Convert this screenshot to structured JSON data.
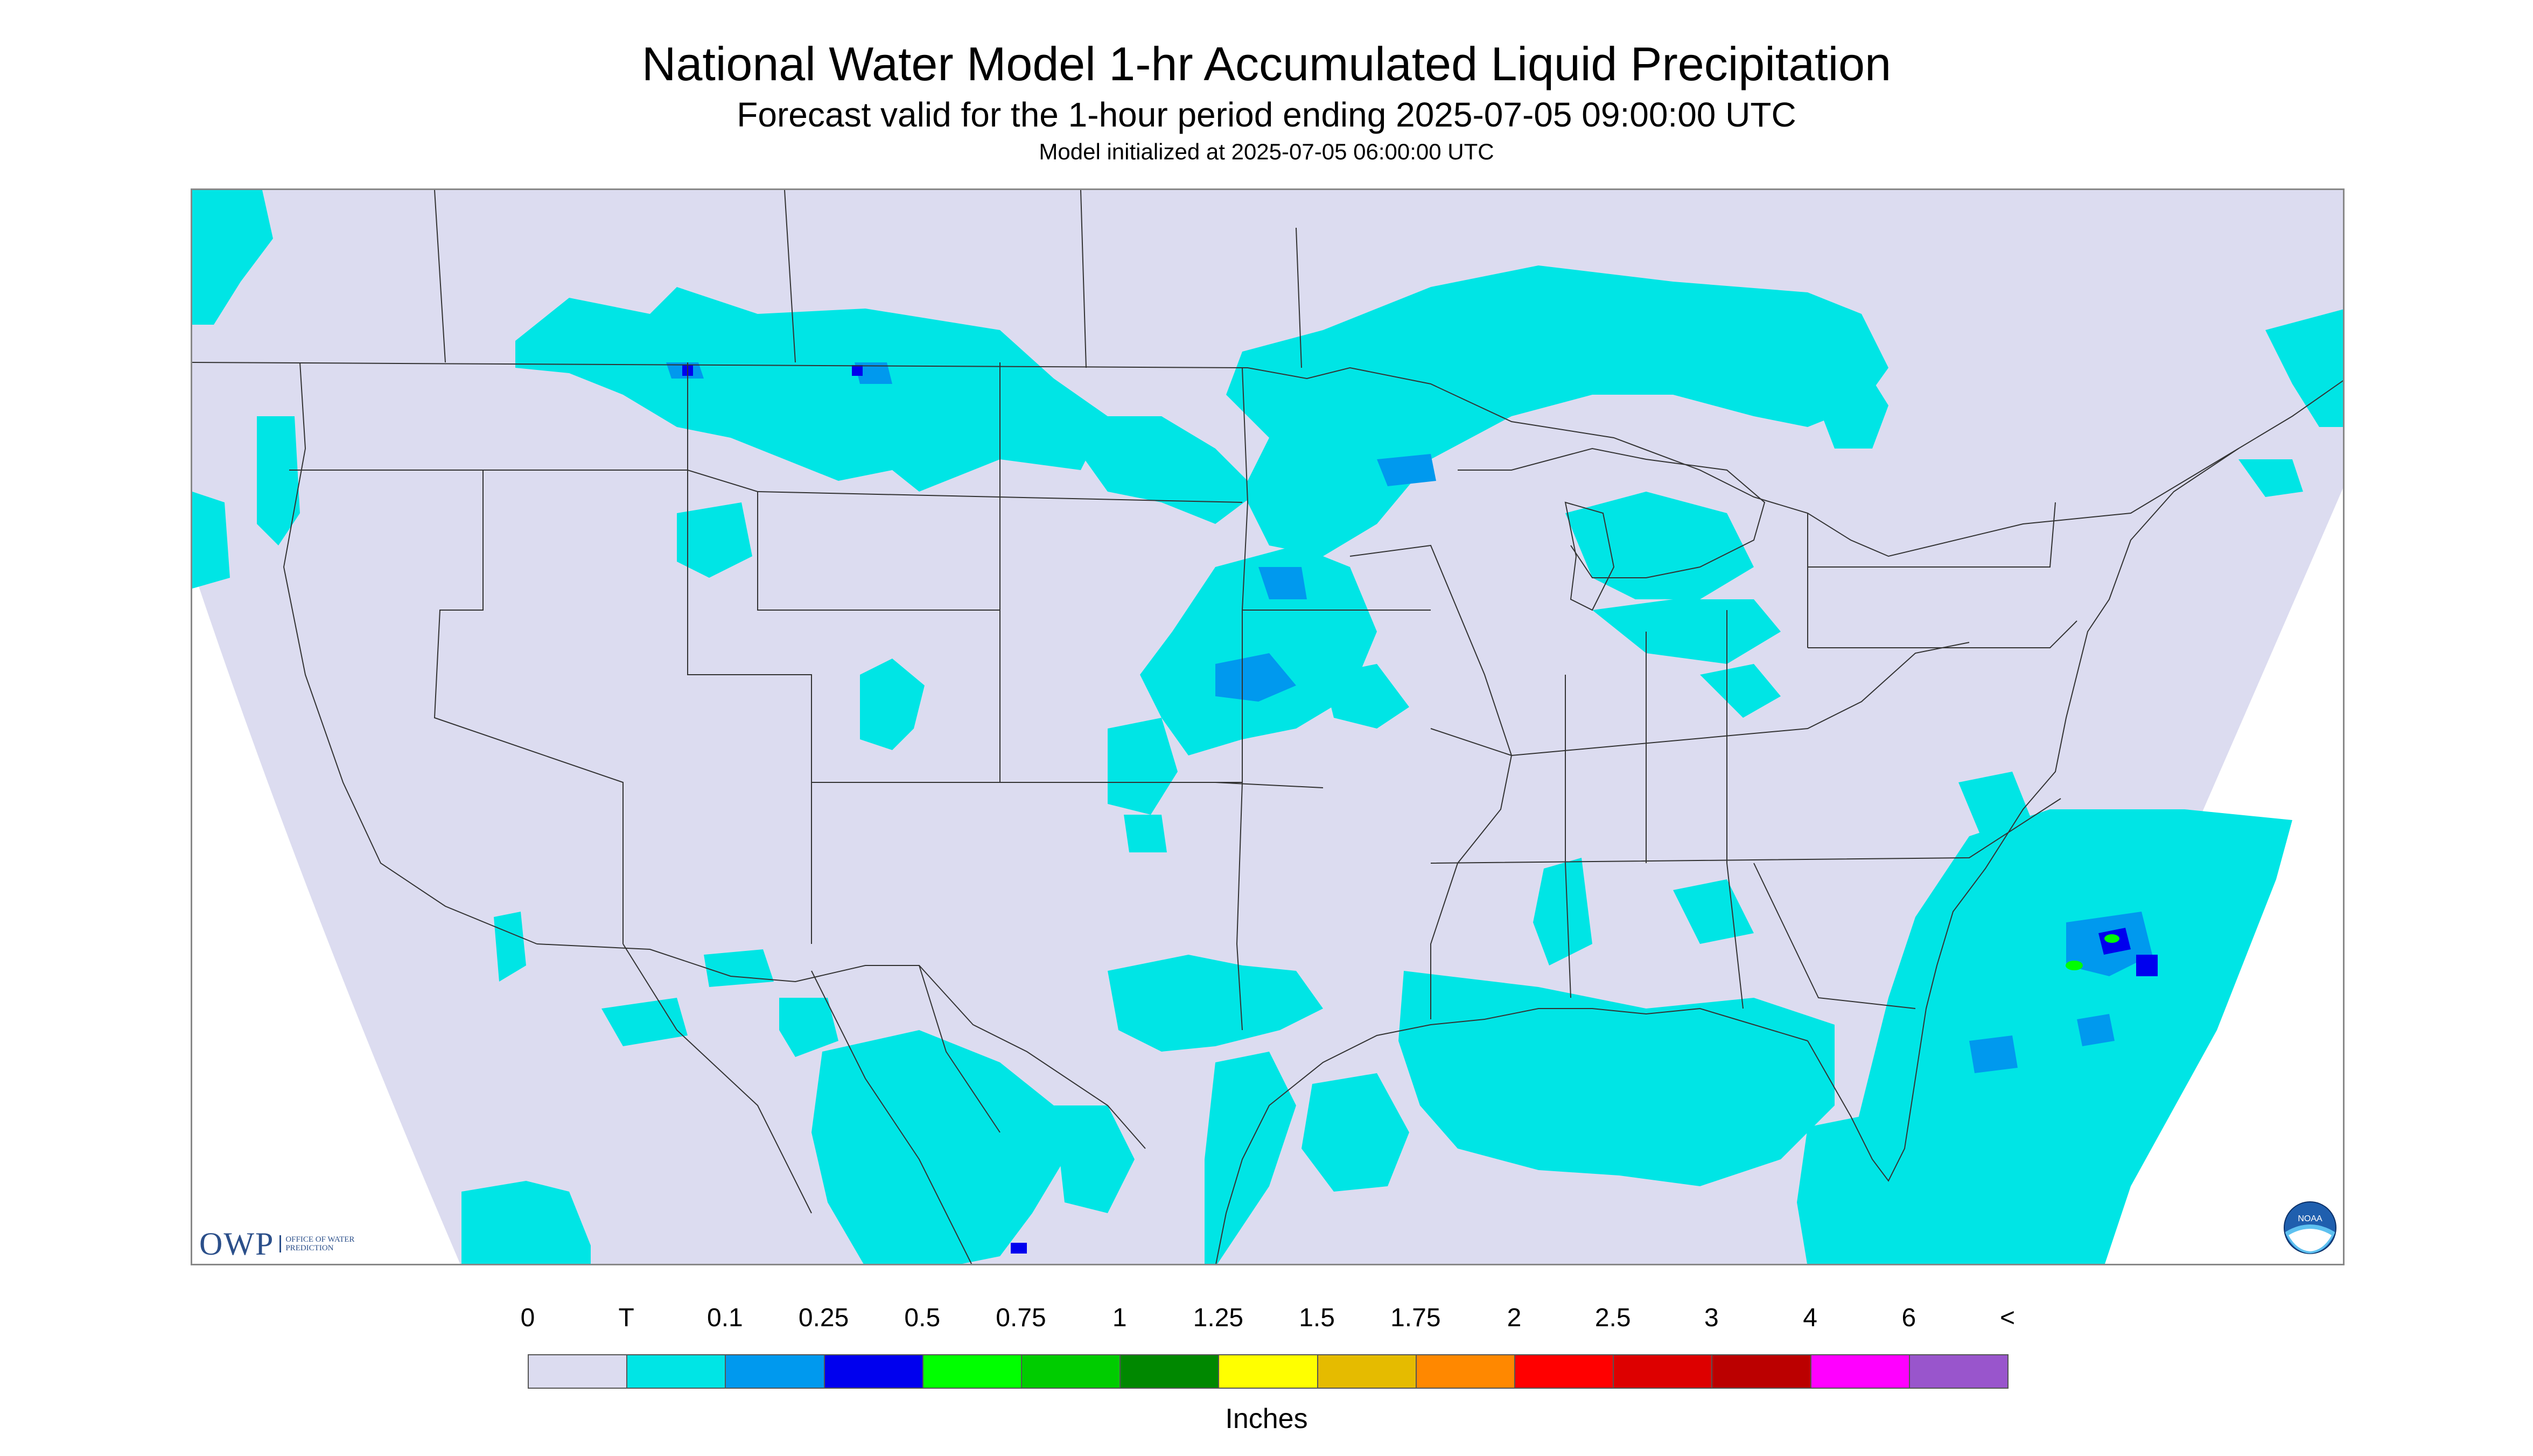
{
  "title": "National Water Model 1-hr Accumulated Liquid Precipitation",
  "subtitle": "Forecast valid for the 1-hour period ending 2025-07-05 09:00:00 UTC",
  "init_line": "Model initialized at 2025-07-05 06:00:00 UTC",
  "logos": {
    "owp_mark": "OWP",
    "owp_full": "OFFICE OF WATER PREDICTION",
    "noaa_mark": "NOAA"
  },
  "legend": {
    "labels": [
      "0",
      "T",
      "0.1",
      "0.25",
      "0.5",
      "0.75",
      "1",
      "1.25",
      "1.5",
      "1.75",
      "2",
      "2.5",
      "3",
      "4",
      "6",
      "<"
    ],
    "colors": [
      "#dcdcf0",
      "#00e5e5",
      "#0099ee",
      "#0000ee",
      "#00ff00",
      "#00cc00",
      "#008800",
      "#ffff00",
      "#e5bb00",
      "#ff8800",
      "#ff0000",
      "#dd0000",
      "#bb0000",
      "#ff00ff",
      "#9955cc"
    ],
    "units": "Inches"
  },
  "colors": {
    "no_precip": "#dcdcf0",
    "trace": "#00e5e5",
    "light": "#0099ee",
    "moderate": "#0000ee",
    "heavy": "#00ff00",
    "border_lines": "#333333"
  }
}
